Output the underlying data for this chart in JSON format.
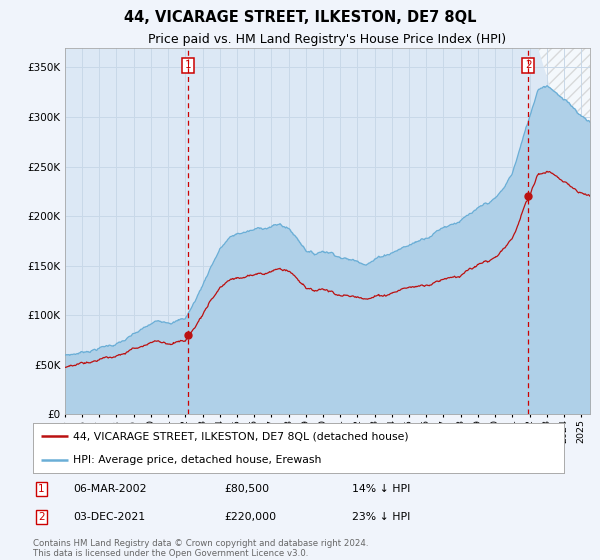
{
  "title": "44, VICARAGE STREET, ILKESTON, DE7 8QL",
  "subtitle": "Price paid vs. HM Land Registry's House Price Index (HPI)",
  "background_color": "#f0f4fb",
  "plot_bg_color": "#dce8f5",
  "grid_color": "#c8d8e8",
  "hpi_line_color": "#6aaed6",
  "hpi_fill_color": "#afd0e8",
  "price_line_color": "#bb1111",
  "vline_color": "#cc0000",
  "marker1_date_x": 2002.17,
  "marker1_price": 80500,
  "marker2_date_x": 2021.92,
  "marker2_price": 220000,
  "legend_label1": "44, VICARAGE STREET, ILKESTON, DE7 8QL (detached house)",
  "legend_label2": "HPI: Average price, detached house, Erewash",
  "footer": "Contains HM Land Registry data © Crown copyright and database right 2024.\nThis data is licensed under the Open Government Licence v3.0.",
  "ylim": [
    0,
    370000
  ],
  "xlim_start": 1995.0,
  "xlim_end": 2025.5,
  "yticks": [
    0,
    50000,
    100000,
    150000,
    200000,
    250000,
    300000,
    350000
  ],
  "ytick_labels": [
    "£0",
    "£50K",
    "£100K",
    "£150K",
    "£200K",
    "£250K",
    "£300K",
    "£350K"
  ]
}
